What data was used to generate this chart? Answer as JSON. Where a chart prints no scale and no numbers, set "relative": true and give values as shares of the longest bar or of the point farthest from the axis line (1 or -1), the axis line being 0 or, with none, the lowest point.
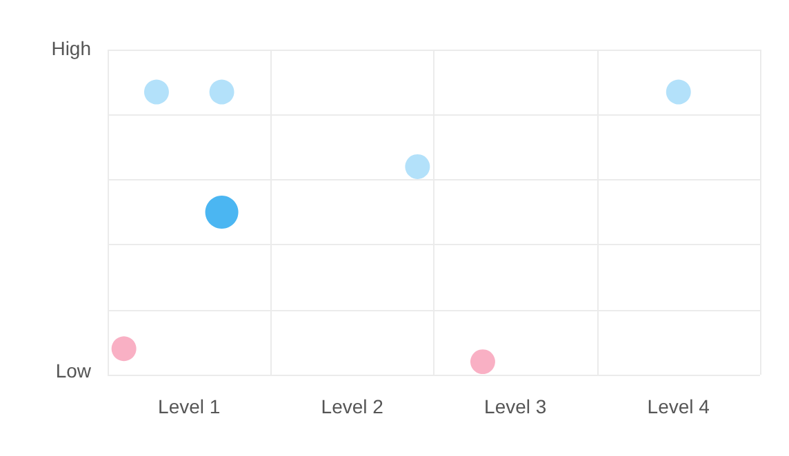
{
  "chart_data": {
    "type": "bubble",
    "relative": true,
    "categories": [
      null,
      null,
      "Level 1",
      null,
      null,
      null,
      null,
      "Level 2",
      null,
      null,
      null,
      null,
      "Level 3",
      null,
      null,
      null,
      null,
      "Level 4",
      null,
      null
    ],
    "annotations": [
      "High",
      "Low"
    ],
    "grid": true,
    "marker": "circle",
    "series": [
      {
        "color": "#b3e1fa",
        "values": [
          null,
          1,
          null,
          1,
          null,
          null,
          null,
          null,
          null,
          0.736,
          null,
          null,
          null,
          null,
          null,
          null,
          null,
          1,
          null,
          null
        ],
        "sizes": [
          null,
          0.56,
          null,
          0.56,
          null,
          null,
          null,
          null,
          null,
          0.56,
          null,
          null,
          null,
          null,
          null,
          null,
          null,
          0.56,
          null,
          null
        ]
      },
      {
        "color": "#4bb6f2",
        "values": [
          null,
          null,
          null,
          0.575,
          null,
          null,
          null,
          null,
          null,
          null,
          null,
          null,
          null,
          null,
          null,
          null,
          null,
          null,
          null,
          null
        ],
        "sizes": [
          null,
          null,
          null,
          1,
          null,
          null,
          null,
          null,
          null,
          null,
          null,
          null,
          null,
          null,
          null,
          null,
          null,
          null,
          null,
          null
        ]
      },
      {
        "color": "#f9b0c4",
        "values": [
          0.092,
          null,
          null,
          null,
          null,
          null,
          null,
          null,
          null,
          null,
          null,
          0.046,
          null,
          null,
          null,
          null,
          null,
          null,
          null,
          null
        ],
        "sizes": [
          0.56,
          null,
          null,
          null,
          null,
          null,
          null,
          null,
          null,
          null,
          null,
          0.56,
          null,
          null,
          null,
          null,
          null,
          null,
          null,
          null
        ]
      }
    ]
  }
}
